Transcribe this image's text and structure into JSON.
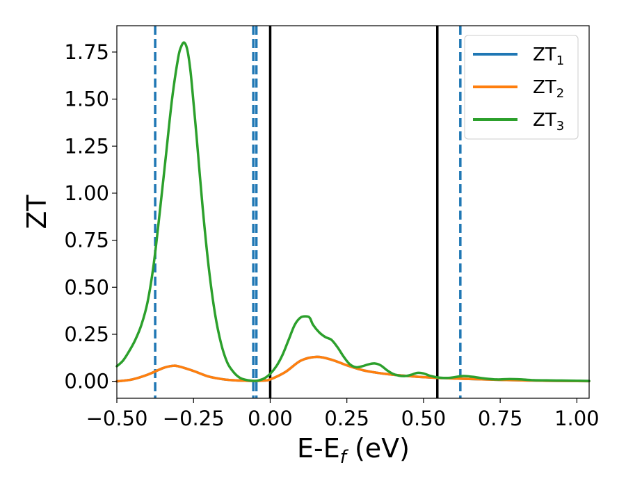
{
  "chart_data": {
    "type": "line",
    "title": "",
    "xlabel": {
      "main": "E-E",
      "sub": "f",
      "rest": " (eV)"
    },
    "ylabel": "ZT",
    "xlim": [
      -0.5,
      1.04
    ],
    "ylim": [
      -0.09,
      1.89
    ],
    "x_ticks": [
      -0.5,
      -0.25,
      0.0,
      0.25,
      0.5,
      0.75,
      1.0
    ],
    "x_tick_labels": [
      "−0.50",
      "−0.25",
      "0.00",
      "0.25",
      "0.50",
      "0.75",
      "1.00"
    ],
    "y_ticks": [
      0.0,
      0.25,
      0.5,
      0.75,
      1.0,
      1.25,
      1.5,
      1.75
    ],
    "y_tick_labels": [
      "0.00",
      "0.25",
      "0.50",
      "0.75",
      "1.00",
      "1.25",
      "1.50",
      "1.75"
    ],
    "grid": false,
    "legend": "top-right",
    "vlines_dashed": {
      "color": "#1f77b4",
      "x": [
        -0.375,
        -0.055,
        -0.045,
        0.62
      ]
    },
    "vlines_solid": {
      "color": "#000000",
      "x": [
        0.0,
        0.545
      ]
    },
    "series": [
      {
        "name": {
          "main": "ZT",
          "sub": "1"
        },
        "color": "#1f77b4",
        "x": [
          -0.5,
          -0.45,
          -0.4,
          -0.35,
          -0.32,
          -0.3,
          -0.25,
          -0.2,
          -0.15,
          -0.1,
          -0.05,
          -0.02,
          0.0,
          0.05,
          0.1,
          0.15,
          0.2,
          0.25,
          0.3,
          0.35,
          0.4,
          0.5,
          0.6,
          0.7,
          0.8,
          0.9,
          1.04
        ],
        "y": [
          0.0,
          0.01,
          0.035,
          0.07,
          0.082,
          0.08,
          0.055,
          0.025,
          0.01,
          0.004,
          0.002,
          0.004,
          0.01,
          0.05,
          0.11,
          0.13,
          0.115,
          0.085,
          0.06,
          0.045,
          0.035,
          0.022,
          0.015,
          0.01,
          0.006,
          0.003,
          0.001
        ]
      },
      {
        "name": {
          "main": "ZT",
          "sub": "2"
        },
        "color": "#ff7f0e",
        "x": [
          -0.5,
          -0.45,
          -0.4,
          -0.35,
          -0.32,
          -0.3,
          -0.25,
          -0.2,
          -0.15,
          -0.1,
          -0.05,
          -0.02,
          0.0,
          0.05,
          0.1,
          0.15,
          0.2,
          0.25,
          0.3,
          0.35,
          0.4,
          0.5,
          0.6,
          0.7,
          0.8,
          0.9,
          1.04
        ],
        "y": [
          0.0,
          0.01,
          0.035,
          0.07,
          0.082,
          0.08,
          0.055,
          0.025,
          0.01,
          0.004,
          0.002,
          0.004,
          0.01,
          0.05,
          0.11,
          0.13,
          0.115,
          0.085,
          0.06,
          0.045,
          0.035,
          0.022,
          0.015,
          0.01,
          0.006,
          0.003,
          0.001
        ]
      },
      {
        "name": {
          "main": "ZT",
          "sub": "3"
        },
        "color": "#2ca02c",
        "x": [
          -0.5,
          -0.48,
          -0.46,
          -0.44,
          -0.42,
          -0.4,
          -0.38,
          -0.36,
          -0.34,
          -0.32,
          -0.3,
          -0.29,
          -0.28,
          -0.27,
          -0.26,
          -0.25,
          -0.24,
          -0.22,
          -0.2,
          -0.18,
          -0.16,
          -0.14,
          -0.12,
          -0.1,
          -0.08,
          -0.06,
          -0.05,
          -0.04,
          -0.02,
          0.0,
          0.02,
          0.04,
          0.06,
          0.08,
          0.1,
          0.12,
          0.13,
          0.14,
          0.16,
          0.18,
          0.2,
          0.22,
          0.24,
          0.26,
          0.28,
          0.3,
          0.32,
          0.34,
          0.36,
          0.38,
          0.4,
          0.42,
          0.44,
          0.46,
          0.48,
          0.5,
          0.52,
          0.55,
          0.58,
          0.6,
          0.63,
          0.66,
          0.7,
          0.74,
          0.78,
          0.82,
          0.86,
          0.9,
          0.95,
          1.0,
          1.04
        ],
        "y": [
          0.08,
          0.11,
          0.16,
          0.22,
          0.3,
          0.42,
          0.62,
          0.9,
          1.2,
          1.5,
          1.72,
          1.78,
          1.8,
          1.76,
          1.65,
          1.48,
          1.3,
          0.92,
          0.6,
          0.36,
          0.2,
          0.1,
          0.05,
          0.02,
          0.008,
          0.003,
          0.002,
          0.004,
          0.015,
          0.04,
          0.08,
          0.14,
          0.22,
          0.3,
          0.34,
          0.345,
          0.335,
          0.3,
          0.26,
          0.235,
          0.22,
          0.18,
          0.13,
          0.09,
          0.075,
          0.08,
          0.09,
          0.095,
          0.085,
          0.06,
          0.04,
          0.03,
          0.028,
          0.035,
          0.045,
          0.042,
          0.03,
          0.02,
          0.018,
          0.022,
          0.028,
          0.024,
          0.015,
          0.01,
          0.012,
          0.01,
          0.006,
          0.005,
          0.004,
          0.003,
          0.002
        ]
      }
    ]
  }
}
